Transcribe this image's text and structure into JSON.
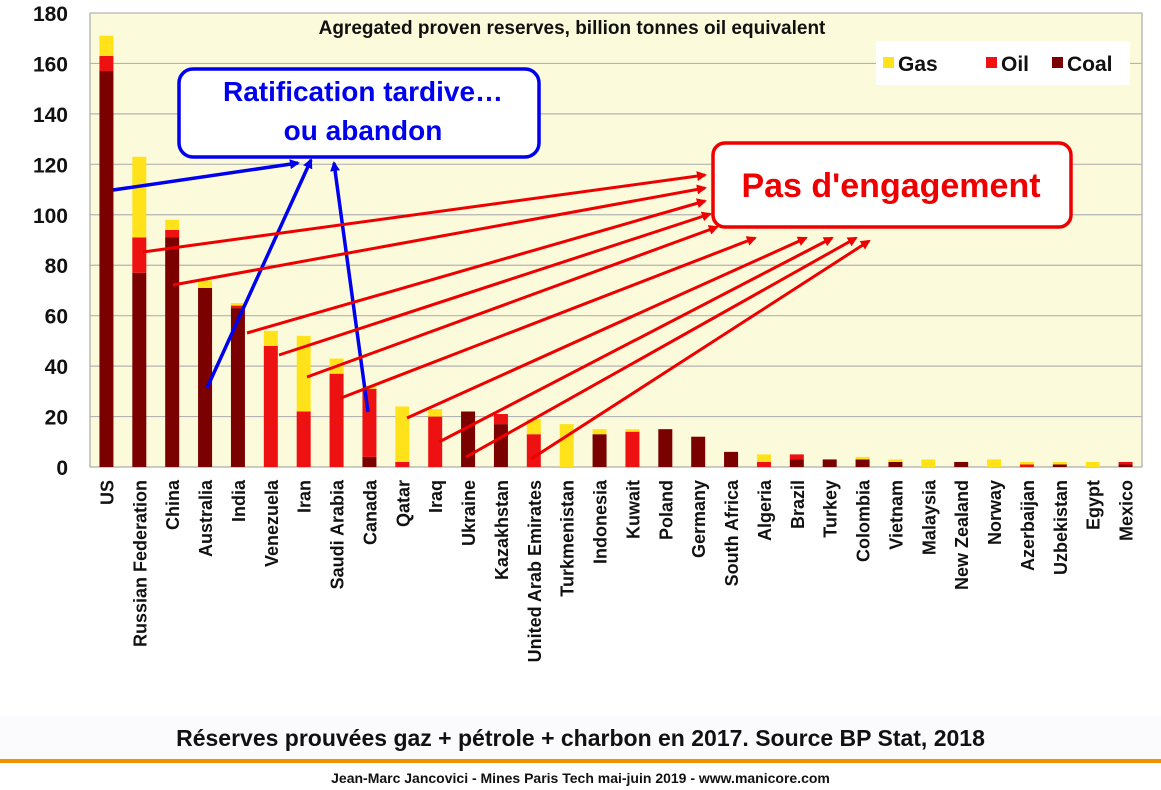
{
  "chart_data": {
    "type": "bar",
    "stacked": true,
    "title": "Agregated proven reserves, billion tonnes oil equivalent",
    "ylim": [
      0,
      180
    ],
    "yticks": [
      "0",
      "20",
      "40",
      "60",
      "80",
      "100",
      "120",
      "140",
      "160",
      "180"
    ],
    "grid": true,
    "legend_position": "top-right",
    "categories": [
      "US",
      "Russian Federation",
      "China",
      "Australia",
      "India",
      "Venezuela",
      "Iran",
      "Saudi Arabia",
      "Canada",
      "Qatar",
      "Iraq",
      "Ukraine",
      "Kazakhstan",
      "United Arab Emirates",
      "Turkmenistan",
      "Indonesia",
      "Kuwait",
      "Poland",
      "Germany",
      "South Africa",
      "Algeria",
      "Brazil",
      "Turkey",
      "Colombia",
      "Vietnam",
      "Malaysia",
      "New Zealand",
      "Norway",
      "Azerbaijan",
      "Uzbekistan",
      "Egypt",
      "Mexico"
    ],
    "series": [
      {
        "name": "Coal",
        "color": "#7b0000",
        "values": [
          157,
          77,
          91,
          71,
          63,
          0,
          0,
          0,
          4,
          0,
          0,
          22,
          17,
          0,
          0,
          13,
          0,
          15,
          12,
          6,
          0,
          3,
          3,
          3,
          2,
          0,
          2,
          0,
          0,
          1,
          0,
          1
        ]
      },
      {
        "name": "Oil",
        "color": "#ee1111",
        "values": [
          6,
          14,
          3,
          0,
          1,
          48,
          22,
          37,
          27,
          2,
          20,
          0,
          4,
          13,
          0,
          0,
          14,
          0,
          0,
          0,
          2,
          2,
          0,
          0,
          0,
          0,
          0,
          0,
          1,
          0,
          0,
          1
        ]
      },
      {
        "name": "Gas",
        "color": "#ffe21a",
        "values": [
          8,
          32,
          4,
          3,
          1,
          6,
          30,
          6,
          1,
          22,
          3,
          0,
          0,
          6,
          17,
          2,
          1,
          0,
          0,
          0,
          3,
          0,
          0,
          1,
          1,
          3,
          0,
          3,
          1,
          1,
          2,
          0
        ]
      }
    ]
  },
  "annotations": {
    "blue_box": {
      "line1": "Ratification tardive…",
      "line2": "ou abandon",
      "color": "#0000ee"
    },
    "red_box": {
      "text": "Pas d'engagement",
      "color": "#ee0000"
    }
  },
  "caption": "Réserves prouvées gaz + pétrole + charbon en 2017. Source BP Stat, 2018",
  "footer": "Jean-Marc Jancovici - Mines Paris Tech mai-juin 2019 - www.manicore.com"
}
